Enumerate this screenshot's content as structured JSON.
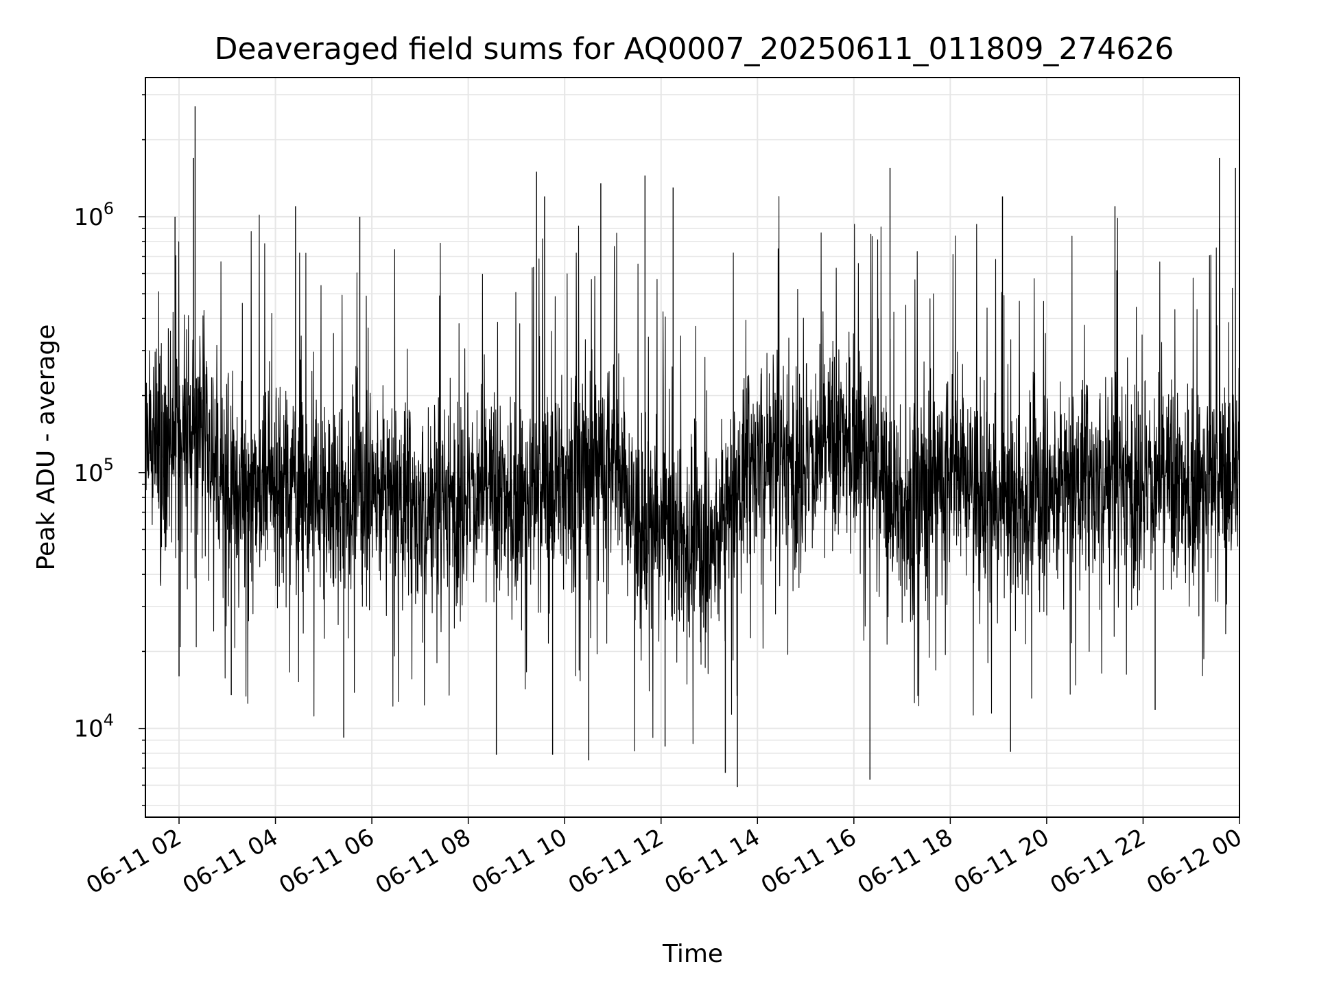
{
  "chart_data": {
    "type": "line",
    "title": "Deaveraged field sums for AQ0007_20250611_011809_274626",
    "xlabel": "Time",
    "ylabel": "Peak ADU - average",
    "yscale": "log",
    "grid": true,
    "grid_color": "#e6e6e6",
    "line_color": "#000000",
    "xlim": [
      "2025-06-11T01:18:09",
      "2025-06-12T00:00:00"
    ],
    "ylim": [
      4500,
      3500000
    ],
    "xticks": [
      {
        "value": "2025-06-11T02:00",
        "label": "06-11 02"
      },
      {
        "value": "2025-06-11T04:00",
        "label": "06-11 04"
      },
      {
        "value": "2025-06-11T06:00",
        "label": "06-11 06"
      },
      {
        "value": "2025-06-11T08:00",
        "label": "06-11 08"
      },
      {
        "value": "2025-06-11T10:00",
        "label": "06-11 10"
      },
      {
        "value": "2025-06-11T12:00",
        "label": "06-11 12"
      },
      {
        "value": "2025-06-11T14:00",
        "label": "06-11 14"
      },
      {
        "value": "2025-06-11T16:00",
        "label": "06-11 16"
      },
      {
        "value": "2025-06-11T18:00",
        "label": "06-11 18"
      },
      {
        "value": "2025-06-11T20:00",
        "label": "06-11 20"
      },
      {
        "value": "2025-06-11T22:00",
        "label": "06-11 22"
      },
      {
        "value": "2025-06-12T00:00",
        "label": "06-12 00"
      }
    ],
    "yticks": [
      {
        "value": 10000,
        "base": "10",
        "exp": "4"
      },
      {
        "value": 100000,
        "base": "10",
        "exp": "5"
      },
      {
        "value": 1000000,
        "base": "10",
        "exp": "6"
      }
    ],
    "series": [
      {
        "x": [
          "2025-06-11T01:18",
          "2025-06-11T01:30",
          "2025-06-11T02:00",
          "2025-06-11T02:30",
          "2025-06-11T03:00",
          "2025-06-11T04:00",
          "2025-06-11T05:00",
          "2025-06-11T06:00",
          "2025-06-11T07:00",
          "2025-06-11T08:00",
          "2025-06-11T09:00",
          "2025-06-11T10:00",
          "2025-06-11T11:00",
          "2025-06-11T11:30",
          "2025-06-11T12:00",
          "2025-06-11T13:00",
          "2025-06-11T14:00",
          "2025-06-11T15:00",
          "2025-06-11T16:00",
          "2025-06-11T17:00",
          "2025-06-11T18:00",
          "2025-06-11T19:00",
          "2025-06-11T20:00",
          "2025-06-11T21:00",
          "2025-06-11T22:00",
          "2025-06-11T23:00",
          "2025-06-12T00:00"
        ],
        "median": [
          150000,
          140000,
          130000,
          160000,
          85000,
          100000,
          75000,
          90000,
          70000,
          85000,
          75000,
          95000,
          120000,
          60000,
          60000,
          50000,
          120000,
          110000,
          140000,
          70000,
          110000,
          70000,
          85000,
          95000,
          95000,
          85000,
          100000
        ],
        "peaks": [
          {
            "x": "2025-06-11T02:20",
            "y": 2700000
          },
          {
            "x": "2025-06-11T02:18",
            "y": 1700000
          },
          {
            "x": "2025-06-11T01:55",
            "y": 1000000
          },
          {
            "x": "2025-06-11T04:25",
            "y": 1100000
          },
          {
            "x": "2025-06-11T05:45",
            "y": 1000000
          },
          {
            "x": "2025-06-11T09:25",
            "y": 1500000
          },
          {
            "x": "2025-06-11T09:35",
            "y": 1200000
          },
          {
            "x": "2025-06-11T10:45",
            "y": 1350000
          },
          {
            "x": "2025-06-11T11:40",
            "y": 1450000
          },
          {
            "x": "2025-06-11T12:15",
            "y": 1300000
          },
          {
            "x": "2025-06-11T16:45",
            "y": 1550000
          },
          {
            "x": "2025-06-11T19:05",
            "y": 1200000
          },
          {
            "x": "2025-06-11T21:25",
            "y": 1100000
          },
          {
            "x": "2025-06-11T23:35",
            "y": 1700000
          },
          {
            "x": "2025-06-11T23:55",
            "y": 1550000
          }
        ],
        "dips": [
          {
            "x": "2025-06-11T02:00",
            "y": 16000
          },
          {
            "x": "2025-06-11T03:05",
            "y": 13500
          },
          {
            "x": "2025-06-11T05:25",
            "y": 9200
          },
          {
            "x": "2025-06-11T08:35",
            "y": 7900
          },
          {
            "x": "2025-06-11T09:45",
            "y": 7900
          },
          {
            "x": "2025-06-11T10:30",
            "y": 7500
          },
          {
            "x": "2025-06-11T12:05",
            "y": 8500
          },
          {
            "x": "2025-06-11T13:20",
            "y": 6700
          },
          {
            "x": "2025-06-11T13:35",
            "y": 5900
          },
          {
            "x": "2025-06-11T16:20",
            "y": 6300
          },
          {
            "x": "2025-06-11T19:15",
            "y": 8100
          },
          {
            "x": "2025-06-11T22:15",
            "y": 11800
          }
        ]
      }
    ]
  }
}
